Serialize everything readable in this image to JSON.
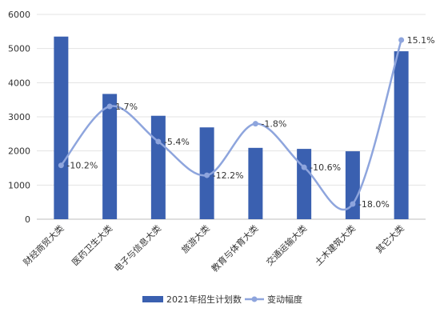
{
  "chart_data": {
    "type": "bar",
    "categories": [
      "财经商贸大类",
      "医药卫生大类",
      "电子与信息大类",
      "旅游大类",
      "教育与体育大类",
      "交通运输大类",
      "土木建筑大类",
      "其它大类"
    ],
    "series": [
      {
        "name": "2021年招生计划数",
        "type": "bar",
        "axis": "left",
        "color": "#3a60b0",
        "values": [
          5350,
          3670,
          3030,
          2690,
          2090,
          2060,
          1990,
          4920
        ]
      },
      {
        "name": "变动幅度",
        "type": "line",
        "smooth": true,
        "axis": "right-hidden",
        "color": "#8ea5dd",
        "values": [
          -10.2,
          1.7,
          -5.4,
          -12.2,
          -1.8,
          -10.6,
          -18.0,
          15.1
        ],
        "labels": [
          "-10.2%",
          "1.7%",
          "-5.4%",
          "-12.2%",
          "-1.8%",
          "-10.6%",
          "-18.0%",
          "15.1%"
        ]
      }
    ],
    "yticks": [
      "0",
      "1000",
      "2000",
      "3000",
      "4000",
      "5000",
      "6000"
    ],
    "ylim": [
      0,
      6000
    ],
    "grid": true,
    "legend": "bottom",
    "title": "",
    "xlabel": "",
    "ylabel": ""
  }
}
